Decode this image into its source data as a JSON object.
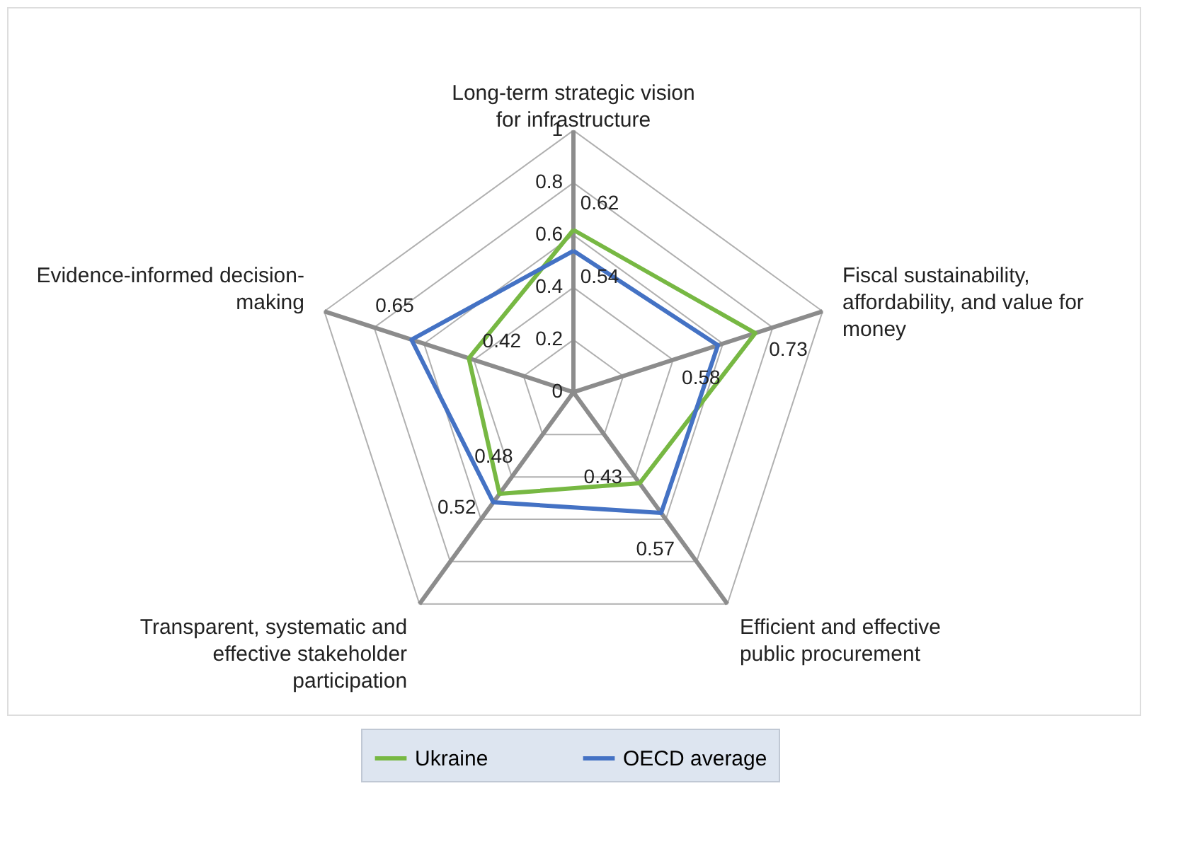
{
  "chart_data": {
    "type": "radar",
    "categories": [
      "Long-term strategic vision for infrastructure",
      "Fiscal sustainability, affordability, and value for money",
      "Efficient and effective public procurement",
      "Transparent, systematic and effective stakeholder participation",
      "Evidence-informed decision-making"
    ],
    "series": [
      {
        "name": "Ukraine",
        "color": "#77b843",
        "values": [
          0.62,
          0.73,
          0.43,
          0.48,
          0.42
        ]
      },
      {
        "name": "OECD average",
        "color": "#4472c4",
        "values": [
          0.54,
          0.58,
          0.57,
          0.52,
          0.65
        ]
      }
    ],
    "ylim": [
      0,
      1
    ],
    "yticks": [
      0,
      0.2,
      0.4,
      0.6,
      0.8,
      1
    ],
    "grid": true,
    "legend": "bottom",
    "data_labels": true
  }
}
